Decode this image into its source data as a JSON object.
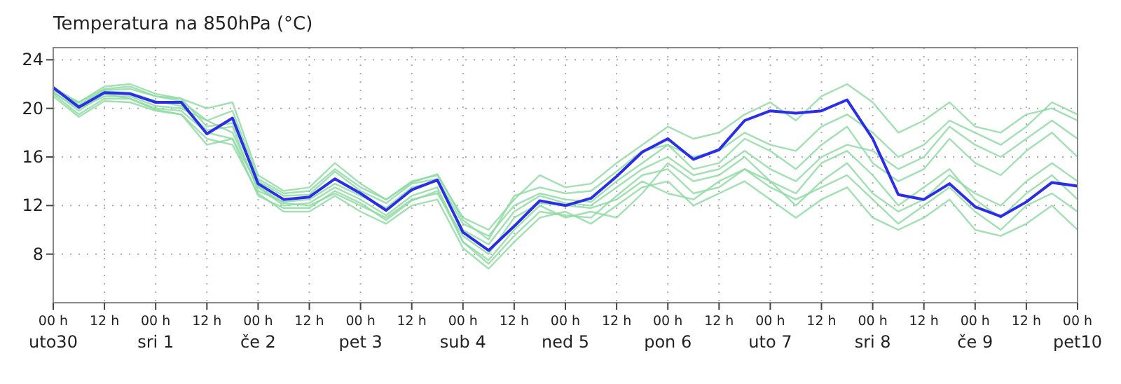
{
  "chart_data": {
    "type": "line",
    "title": "Temperatura na 850hPa (°C)",
    "categories": [
      "00 h\nuto30",
      null,
      "12 h",
      null,
      "00 h\nsri 1",
      null,
      "12 h",
      null,
      "00 h\nče 2",
      null,
      "12 h",
      null,
      "00 h\npet 3",
      null,
      "12 h",
      null,
      "00 h\nsub 4",
      null,
      "12 h",
      null,
      "00 h\nned 5",
      null,
      "12 h",
      null,
      "00 h\npon 6",
      null,
      "12 h",
      null,
      "00 h\nuto 7",
      null,
      "12 h",
      null,
      "00 h\nsri 8",
      null,
      "12 h",
      null,
      "00 h\nče 9",
      null,
      "12 h",
      null,
      "00 h\npet10"
    ],
    "ylim": [
      4,
      25
    ],
    "yticks": [
      8,
      12,
      16,
      20,
      24
    ],
    "grid": true,
    "marker": "none",
    "line_style": "solid",
    "series": [
      {
        "color": "#8fdba3",
        "values": [
          21.5,
          20.5,
          21.8,
          22.0,
          21.2,
          20.8,
          20.0,
          20.5,
          14.5,
          13.2,
          13.5,
          15.5,
          13.8,
          12.5,
          14.0,
          14.5,
          11.0,
          10.0,
          12.5,
          14.5,
          13.5,
          13.8,
          15.5,
          17.0,
          18.5,
          17.5,
          18.0,
          19.5,
          20.5,
          19.0,
          21.0,
          22.0,
          20.5,
          18.0,
          19.0,
          20.5,
          18.5,
          18.0,
          19.5,
          20.0,
          19.0
        ]
      },
      {
        "color": "#8fdba3",
        "values": [
          21.0,
          19.3,
          20.6,
          20.5,
          19.8,
          19.5,
          17.5,
          17.0,
          13.0,
          11.5,
          11.5,
          12.8,
          11.5,
          10.5,
          12.0,
          12.5,
          8.5,
          6.8,
          9.0,
          11.0,
          11.5,
          10.5,
          12.0,
          13.5,
          14.0,
          12.0,
          13.0,
          14.0,
          12.5,
          11.0,
          12.5,
          13.5,
          11.0,
          10.0,
          11.0,
          12.5,
          10.0,
          9.5,
          10.5,
          12.0,
          10.0
        ]
      },
      {
        "color": "#8fdba3",
        "values": [
          21.8,
          20.3,
          21.5,
          21.6,
          21.0,
          20.8,
          18.5,
          18.8,
          14.0,
          12.8,
          12.9,
          14.8,
          13.2,
          12.2,
          13.8,
          14.2,
          10.5,
          9.5,
          12.0,
          13.0,
          12.5,
          12.3,
          14.0,
          15.5,
          17.0,
          15.0,
          15.5,
          17.5,
          16.5,
          15.0,
          17.0,
          18.5,
          15.5,
          14.0,
          15.0,
          17.5,
          15.5,
          14.5,
          16.5,
          18.0,
          16.0
        ]
      },
      {
        "color": "#8fdba3",
        "values": [
          21.3,
          20.0,
          21.0,
          21.0,
          20.2,
          20.0,
          19.0,
          18.0,
          13.5,
          12.0,
          12.2,
          13.5,
          12.5,
          11.2,
          12.8,
          13.5,
          9.0,
          7.5,
          10.0,
          12.0,
          11.0,
          11.5,
          11.0,
          13.0,
          15.5,
          14.0,
          14.5,
          16.0,
          14.0,
          13.0,
          15.5,
          16.5,
          14.5,
          12.0,
          13.5,
          15.0,
          12.5,
          11.0,
          13.0,
          14.5,
          12.5
        ]
      },
      {
        "color": "#8fdba3",
        "values": [
          21.6,
          20.2,
          21.4,
          21.3,
          20.6,
          20.2,
          18.2,
          18.5,
          13.2,
          12.3,
          12.5,
          13.8,
          12.8,
          11.8,
          13.5,
          14.0,
          10.0,
          8.8,
          11.5,
          12.8,
          12.2,
          12.0,
          13.5,
          15.0,
          16.0,
          14.5,
          15.0,
          16.5,
          15.0,
          14.0,
          16.0,
          17.0,
          16.5,
          15.0,
          16.0,
          18.5,
          17.0,
          16.0,
          17.5,
          19.0,
          17.5
        ]
      },
      {
        "color": "#8fdba3",
        "values": [
          21.4,
          19.8,
          21.2,
          20.8,
          20.0,
          19.8,
          18.0,
          17.5,
          13.6,
          12.2,
          12.0,
          13.0,
          12.0,
          11.0,
          12.5,
          13.0,
          9.5,
          8.0,
          11.0,
          12.2,
          12.0,
          11.8,
          12.5,
          14.0,
          13.0,
          12.5,
          14.0,
          15.0,
          14.0,
          12.0,
          14.0,
          15.5,
          13.0,
          11.5,
          12.5,
          14.5,
          13.0,
          12.0,
          14.0,
          15.5,
          14.0
        ]
      },
      {
        "color": "#8fdba3",
        "values": [
          21.7,
          20.5,
          21.6,
          21.8,
          21.0,
          20.6,
          19.0,
          19.8,
          14.2,
          13.0,
          13.2,
          15.0,
          13.5,
          12.5,
          13.9,
          14.6,
          10.8,
          9.2,
          12.8,
          13.5,
          13.0,
          13.2,
          14.8,
          16.5,
          17.0,
          16.0,
          16.5,
          18.0,
          17.0,
          16.5,
          18.5,
          19.5,
          18.0,
          16.0,
          17.0,
          19.0,
          18.0,
          17.0,
          18.5,
          20.5,
          19.5
        ]
      },
      {
        "color": "#8fdba3",
        "values": [
          21.2,
          19.5,
          20.8,
          20.8,
          19.9,
          19.5,
          17.0,
          17.5,
          12.8,
          11.8,
          11.8,
          13.2,
          12.2,
          10.8,
          12.4,
          13.2,
          9.0,
          7.2,
          9.5,
          11.5,
          11.2,
          11.0,
          12.8,
          14.5,
          15.0,
          13.0,
          13.5,
          15.0,
          13.5,
          12.5,
          13.5,
          14.5,
          12.5,
          10.5,
          12.0,
          13.5,
          11.5,
          10.0,
          12.0,
          13.0,
          11.5
        ]
      },
      {
        "color": "#2a2ee8",
        "values": [
          21.7,
          20.1,
          21.3,
          21.2,
          20.5,
          20.5,
          17.9,
          19.2,
          13.8,
          12.5,
          12.7,
          14.2,
          13.0,
          11.6,
          13.3,
          14.1,
          9.8,
          8.3,
          10.3,
          12.4,
          12.0,
          12.6,
          14.4,
          16.4,
          17.5,
          15.8,
          16.6,
          19.0,
          19.8,
          19.6,
          19.8,
          20.7,
          17.5,
          12.9,
          12.5,
          13.8,
          11.9,
          11.1,
          12.3,
          13.9,
          13.6
        ]
      }
    ]
  }
}
